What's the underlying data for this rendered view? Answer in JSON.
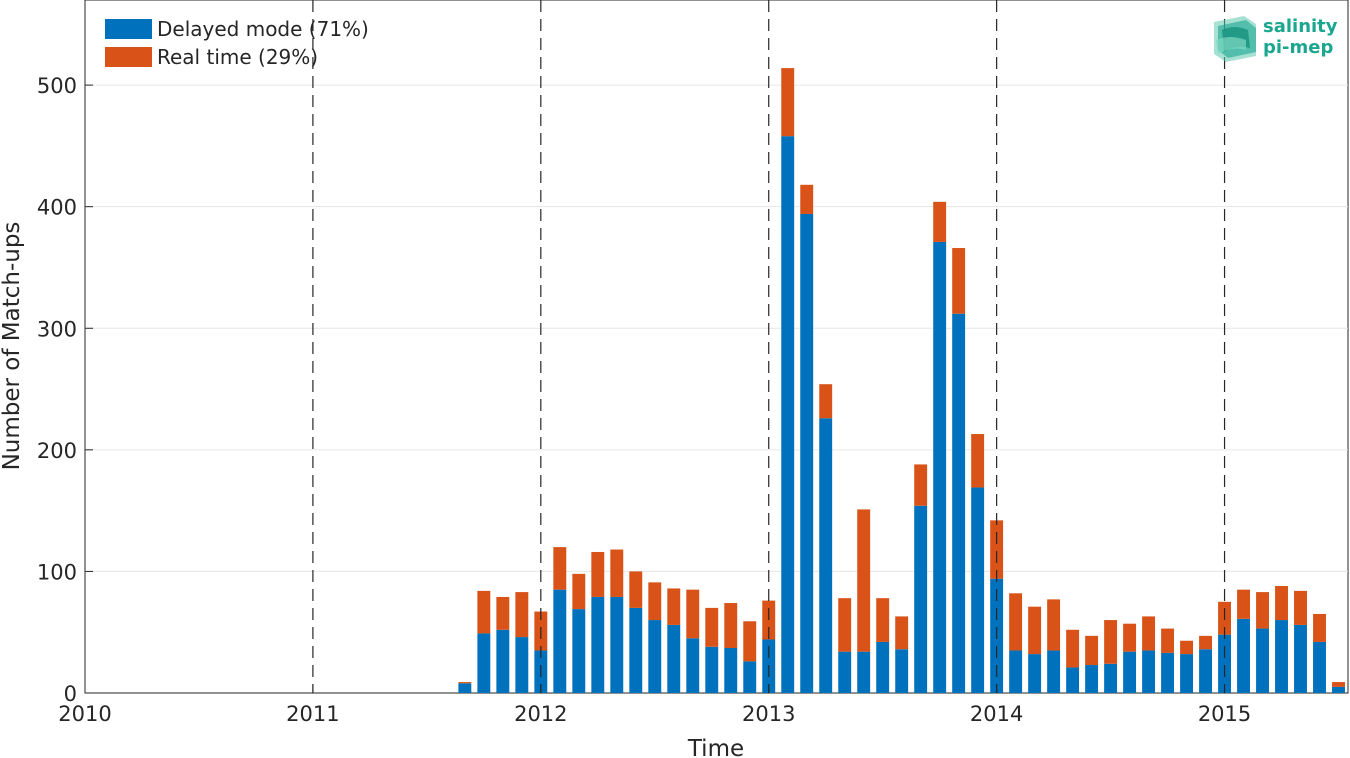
{
  "chart_data": {
    "type": "bar",
    "stacked": true,
    "xlabel": "Time",
    "ylabel": "Number of Match-ups",
    "xlim": [
      "2010-01",
      "2015-07"
    ],
    "ylim": [
      0,
      570
    ],
    "yticks": [
      0,
      100,
      200,
      300,
      400,
      500
    ],
    "xticks": [
      "2010",
      "2011",
      "2012",
      "2013",
      "2014",
      "2015"
    ],
    "grid": true,
    "year_dividers": "dashed vertical lines at each year start",
    "legend_position": "top-left",
    "categories": [
      "2011-09",
      "2011-10",
      "2011-11",
      "2011-12",
      "2012-01",
      "2012-02",
      "2012-03",
      "2012-04",
      "2012-05",
      "2012-06",
      "2012-07",
      "2012-08",
      "2012-09",
      "2012-10",
      "2012-11",
      "2012-12",
      "2013-01",
      "2013-02",
      "2013-03",
      "2013-04",
      "2013-05",
      "2013-06",
      "2013-07",
      "2013-08",
      "2013-09",
      "2013-10",
      "2013-11",
      "2013-12",
      "2014-01",
      "2014-02",
      "2014-03",
      "2014-04",
      "2014-05",
      "2014-06",
      "2014-07",
      "2014-08",
      "2014-09",
      "2014-10",
      "2014-11",
      "2014-12",
      "2015-01",
      "2015-02",
      "2015-03",
      "2015-04",
      "2015-05",
      "2015-06",
      "2015-07"
    ],
    "series": [
      {
        "name": "Delayed mode (71%)",
        "color": "#0072BD",
        "values": [
          8,
          49,
          52,
          46,
          35,
          85,
          69,
          79,
          79,
          70,
          60,
          56,
          45,
          38,
          37,
          26,
          44,
          458,
          394,
          226,
          34,
          34,
          42,
          36,
          154,
          371,
          312,
          169,
          94,
          35,
          32,
          35,
          21,
          23,
          24,
          34,
          35,
          33,
          32,
          36,
          48,
          61,
          53,
          60,
          56,
          42,
          5
        ]
      },
      {
        "name": "Real time (29%)",
        "color": "#D95319",
        "values": [
          1,
          35,
          27,
          37,
          32,
          35,
          29,
          37,
          39,
          30,
          31,
          30,
          40,
          32,
          37,
          33,
          32,
          56,
          24,
          28,
          44,
          117,
          36,
          27,
          34,
          33,
          54,
          44,
          48,
          47,
          39,
          42,
          31,
          24,
          36,
          23,
          28,
          20,
          11,
          11,
          27,
          24,
          30,
          28,
          28,
          23,
          4
        ]
      }
    ]
  },
  "logo": {
    "line1": "salinity",
    "line2": "pi-mep",
    "color": "#1aa68f"
  }
}
